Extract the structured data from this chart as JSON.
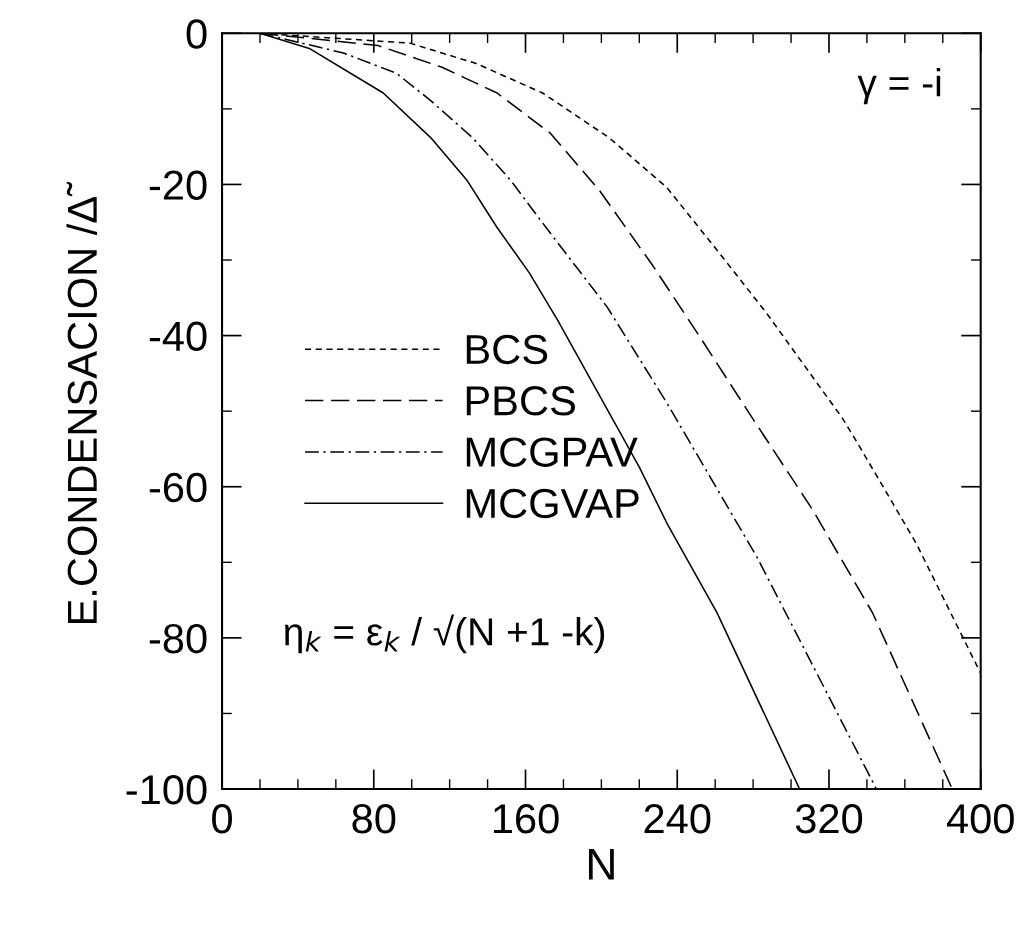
{
  "chart_data": {
    "type": "line",
    "xlabel": "N",
    "ylabel": "E.CONDENSACION /Δ̃",
    "xlim": [
      0,
      400
    ],
    "xticks": [
      0,
      80,
      160,
      240,
      320,
      400
    ],
    "ylim": [
      -100,
      0
    ],
    "yticks": [
      -100,
      -80,
      -60,
      -40,
      -20,
      0
    ],
    "grid": false,
    "legend": "center left",
    "marker": "none",
    "annotations": [
      {
        "text": "γ = -i"
      },
      {
        "text": "η$_{k}$ = ε$_{k}$ / √(N +1 -k)"
      }
    ],
    "series": [
      {
        "name": "BCS",
        "color": "#000000",
        "line_style": "dotted",
        "x": [
          20,
          99,
          134,
          169,
          204,
          234.5,
          261,
          287,
          327,
          335,
          366,
          400
        ],
        "values": [
          0,
          -1.3,
          -4.0,
          -7.9,
          -13.8,
          -20.4,
          -28.7,
          -37,
          -50.9,
          -54.2,
          -67.5,
          -84.7
        ]
      },
      {
        "name": "PBCS",
        "color": "#000000",
        "line_style": "dashed",
        "x": [
          20,
          82,
          116,
          145,
          173,
          199,
          227,
          252,
          278,
          311.5,
          343,
          385
        ],
        "values": [
          0,
          -1.6,
          -4.5,
          -7.9,
          -13.2,
          -20.8,
          -30.7,
          -40.2,
          -50.3,
          -63.1,
          -76.7,
          -100
        ]
      },
      {
        "name": "MCGPAV",
        "color": "#000000",
        "line_style": "dashdot",
        "x": [
          20,
          64,
          92,
          110,
          132,
          152,
          169,
          187,
          203,
          234.5,
          282,
          345
        ],
        "values": [
          0,
          -2.6,
          -5.3,
          -8.9,
          -13.8,
          -19.4,
          -25.1,
          -31,
          -36.2,
          -48.9,
          -69.3,
          -100
        ]
      },
      {
        "name": "MCGVAP",
        "color": "#000000",
        "line_style": "solid",
        "x": [
          20,
          46,
          85,
          110,
          129,
          145,
          162,
          177,
          220,
          234.5,
          261,
          304.5
        ],
        "values": [
          0,
          -2.0,
          -7.9,
          -13.8,
          -19.4,
          -25.7,
          -31.7,
          -38,
          -57.4,
          -64.8,
          -76.7,
          -100
        ]
      }
    ]
  }
}
